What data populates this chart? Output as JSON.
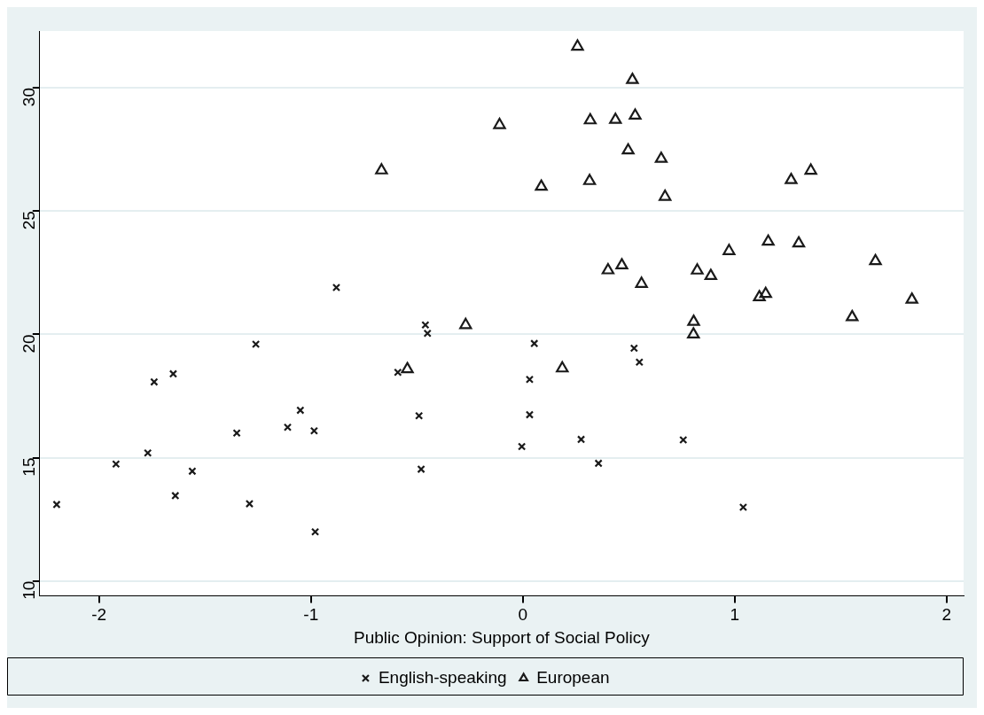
{
  "chart_data": {
    "type": "scatter",
    "xlabel": "Public Opinion: Support of Social Policy",
    "xlim": [
      -2.28,
      2.08
    ],
    "xticks": [
      -2,
      -1,
      0,
      1,
      2
    ],
    "ylim": [
      9.4,
      32.3
    ],
    "yticks": [
      10,
      15,
      20,
      25,
      30
    ],
    "grid": "y",
    "legend": "bottom",
    "series": [
      {
        "name": "English-speaking",
        "color": "#1a1a1a",
        "marker": "cross",
        "x": [
          -2.2,
          -1.92,
          -1.77,
          -1.74,
          -1.65,
          -1.64,
          -1.56,
          -1.35,
          -1.29,
          -1.26,
          -1.11,
          -1.05,
          -0.985,
          -0.98,
          -0.88,
          -0.59,
          -0.49,
          -0.48,
          -0.46,
          -0.45,
          0.054,
          0.032,
          0.032,
          -0.005,
          0.275,
          0.357,
          0.525,
          0.55,
          0.757,
          1.04
        ],
        "values": [
          13.1,
          14.74,
          15.19,
          18.07,
          18.4,
          13.46,
          14.45,
          16.0,
          13.13,
          19.6,
          16.23,
          16.92,
          16.09,
          11.99,
          21.9,
          18.46,
          16.7,
          14.53,
          20.38,
          20.04,
          19.63,
          18.17,
          16.74,
          15.45,
          15.74,
          14.77,
          19.44,
          18.87,
          15.72,
          12.99
        ]
      },
      {
        "name": "European",
        "color": "#1a1a1a",
        "marker": "triangle",
        "x": [
          0.258,
          0.517,
          -0.11,
          0.318,
          0.437,
          0.53,
          0.497,
          0.653,
          -0.667,
          0.087,
          0.315,
          0.671,
          1.158,
          0.973,
          0.402,
          0.467,
          0.56,
          0.823,
          0.887,
          1.116,
          1.146,
          1.266,
          1.359,
          1.664,
          1.836,
          1.302,
          1.554,
          0.806,
          0.805,
          0.186,
          -0.545,
          -0.27
        ],
        "values": [
          31.67,
          30.32,
          28.49,
          28.68,
          28.7,
          28.87,
          27.46,
          27.12,
          26.65,
          25.99,
          26.22,
          25.58,
          23.76,
          23.38,
          22.6,
          22.8,
          22.05,
          22.59,
          22.37,
          21.51,
          21.64,
          26.26,
          26.64,
          22.97,
          21.41,
          23.69,
          20.7,
          20.51,
          20.0,
          18.62,
          18.59,
          20.38
        ]
      }
    ]
  }
}
